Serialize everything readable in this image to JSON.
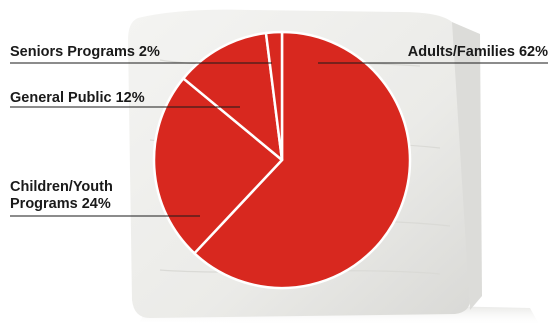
{
  "chart_data": {
    "type": "pie",
    "title": "",
    "slices": [
      {
        "name": "Adults/Families",
        "value": 62,
        "label_lines": [
          "Adults/Families 62%"
        ]
      },
      {
        "name": "Children/Youth Programs",
        "value": 24,
        "label_lines": [
          "Children/Youth",
          "Programs 24%"
        ]
      },
      {
        "name": "General Public",
        "value": 12,
        "label_lines": [
          "General Public 12%"
        ]
      },
      {
        "name": "Seniors Programs",
        "value": 2,
        "label_lines": [
          "Seniors Programs 2%"
        ]
      }
    ],
    "colors": {
      "slice_fill": "#d8281f",
      "slice_stroke": "#ffffff",
      "block_background": "#ececea",
      "leader_line": "#1a1a1a"
    }
  }
}
